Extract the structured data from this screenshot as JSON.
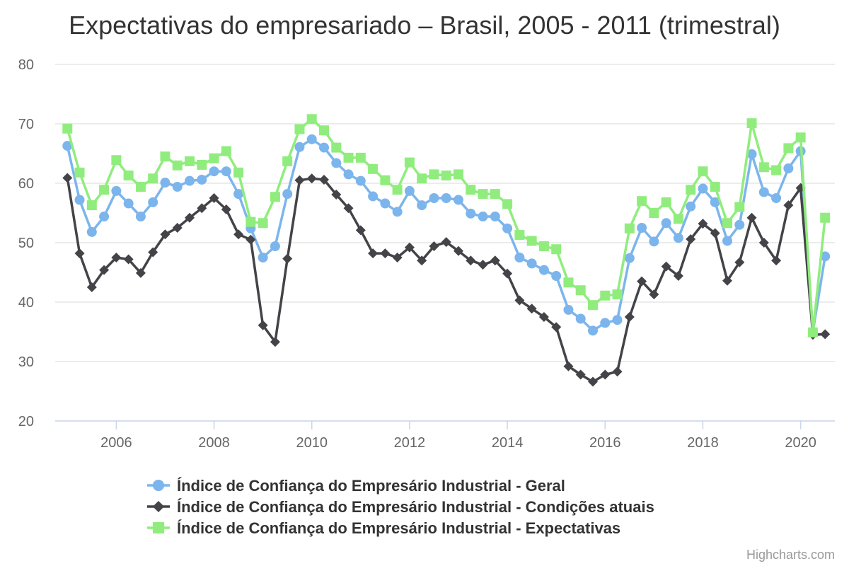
{
  "chart_data": {
    "type": "line",
    "title": "Expectativas do empresariado – Brasil, 2005 - 2011 (trimestral)",
    "credits": "Highcharts.com",
    "x_start": 2005.0,
    "x_step": 0.25,
    "x_ticks": [
      "2006",
      "2008",
      "2010",
      "2012",
      "2014",
      "2016",
      "2018",
      "2020"
    ],
    "x_tick_values": [
      2006,
      2008,
      2010,
      2012,
      2014,
      2016,
      2018,
      2020
    ],
    "y_ticks": [
      "20",
      "30",
      "40",
      "50",
      "60",
      "70",
      "80"
    ],
    "y_tick_values": [
      20,
      30,
      40,
      50,
      60,
      70,
      80
    ],
    "ylim": [
      20,
      80
    ],
    "xlim": [
      2004.75,
      2020.7
    ],
    "legend_position": "bottom-center",
    "grid": true,
    "series": [
      {
        "name": "Índice de Confiança do Empresário Industrial - Geral",
        "color": "#7cb5ec",
        "marker": "circle",
        "values": [
          66.3,
          57.2,
          51.8,
          54.4,
          58.7,
          56.6,
          54.4,
          56.8,
          60.1,
          59.4,
          60.4,
          60.6,
          62.0,
          62.0,
          58.2,
          52.4,
          47.5,
          49.4,
          58.2,
          66.1,
          67.4,
          66.0,
          63.4,
          61.5,
          60.4,
          57.8,
          56.6,
          55.2,
          58.7,
          56.3,
          57.5,
          57.5,
          57.2,
          54.9,
          54.4,
          54.4,
          52.4,
          47.5,
          46.5,
          45.4,
          44.4,
          38.7,
          37.2,
          35.2,
          36.5,
          37.0,
          47.4,
          52.5,
          50.2,
          53.3,
          50.8,
          56.1,
          59.1,
          56.8,
          50.3,
          53.0,
          64.9,
          58.5,
          57.5,
          62.5,
          65.4,
          35.0,
          47.7
        ]
      },
      {
        "name": "Índice de Confiança do Empresário Industrial - Condições atuais",
        "color": "#434348",
        "marker": "diamond",
        "values": [
          60.9,
          48.2,
          42.5,
          45.4,
          47.5,
          47.2,
          44.9,
          48.4,
          51.4,
          52.5,
          54.2,
          55.8,
          57.5,
          55.6,
          51.4,
          50.5,
          36.1,
          33.3,
          47.3,
          60.5,
          60.8,
          60.6,
          58.1,
          55.8,
          52.1,
          48.2,
          48.2,
          47.5,
          49.2,
          47.0,
          49.4,
          50.1,
          48.6,
          47.0,
          46.3,
          47.0,
          44.8,
          40.3,
          38.9,
          37.5,
          35.8,
          29.2,
          27.8,
          26.6,
          27.8,
          28.3,
          37.5,
          43.5,
          41.3,
          46.0,
          44.4,
          50.6,
          53.2,
          51.6,
          43.6,
          46.7,
          54.2,
          50.0,
          47.0,
          56.3,
          59.2,
          34.5,
          34.6
        ]
      },
      {
        "name": "Índice de Confiança do Empresário Industrial - Expectativas",
        "color": "#90ed7d",
        "marker": "square",
        "values": [
          69.2,
          61.8,
          56.3,
          58.9,
          63.9,
          61.3,
          59.4,
          60.8,
          64.5,
          63.0,
          63.7,
          63.1,
          64.2,
          65.4,
          61.8,
          53.5,
          53.3,
          57.7,
          63.7,
          69.1,
          70.8,
          68.9,
          66.0,
          64.3,
          64.3,
          62.4,
          60.5,
          58.9,
          63.5,
          60.8,
          61.5,
          61.3,
          61.5,
          58.9,
          58.2,
          58.2,
          56.5,
          51.3,
          50.3,
          49.4,
          48.9,
          43.3,
          42.0,
          39.5,
          41.1,
          41.3,
          52.4,
          57.0,
          55.0,
          56.8,
          54.0,
          58.9,
          62.0,
          59.4,
          53.3,
          56.0,
          70.1,
          62.7,
          62.2,
          65.9,
          67.7,
          34.9,
          54.2
        ]
      }
    ]
  }
}
